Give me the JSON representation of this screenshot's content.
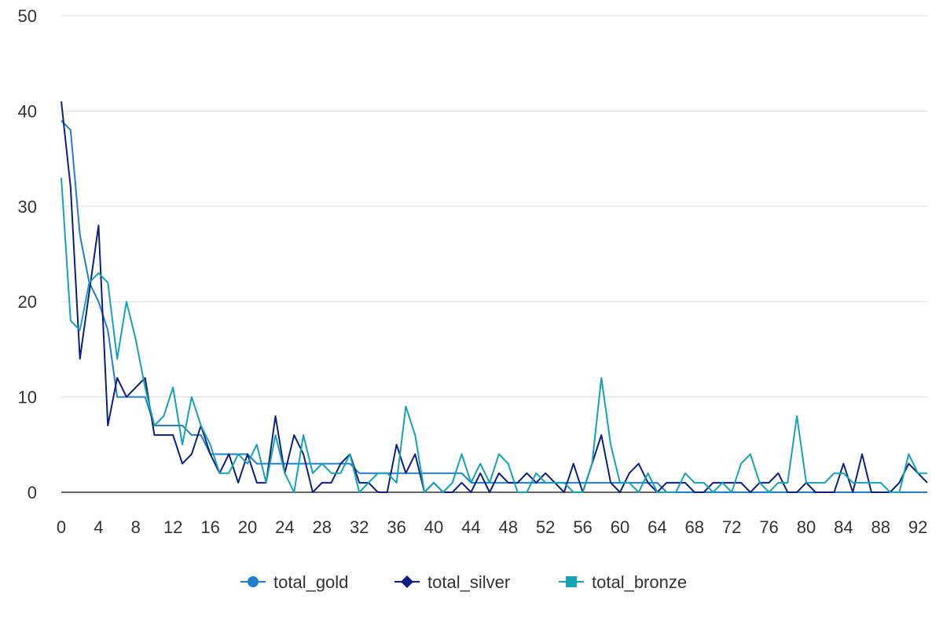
{
  "chart_data": {
    "type": "line",
    "title": "",
    "xlabel": "",
    "ylabel": "",
    "xlim": [
      0,
      93
    ],
    "ylim": [
      0,
      50
    ],
    "y_ticks": [
      0,
      10,
      20,
      30,
      40,
      50
    ],
    "x_ticks": [
      0,
      4,
      8,
      12,
      16,
      20,
      24,
      28,
      32,
      36,
      40,
      44,
      48,
      52,
      56,
      60,
      64,
      68,
      72,
      76,
      80,
      84,
      88,
      92
    ],
    "grid": "horizontal",
    "legend_position": "bottom",
    "x": [
      0,
      1,
      2,
      3,
      4,
      5,
      6,
      7,
      8,
      9,
      10,
      11,
      12,
      13,
      14,
      15,
      16,
      17,
      18,
      19,
      20,
      21,
      22,
      23,
      24,
      25,
      26,
      27,
      28,
      29,
      30,
      31,
      32,
      33,
      34,
      35,
      36,
      37,
      38,
      39,
      40,
      41,
      42,
      43,
      44,
      45,
      46,
      47,
      48,
      49,
      50,
      51,
      52,
      53,
      54,
      55,
      56,
      57,
      58,
      59,
      60,
      61,
      62,
      63,
      64,
      65,
      66,
      67,
      68,
      69,
      70,
      71,
      72,
      73,
      74,
      75,
      76,
      77,
      78,
      79,
      80,
      81,
      82,
      83,
      84,
      85,
      86,
      87,
      88,
      89,
      90,
      91,
      92,
      93
    ],
    "series": [
      {
        "name": "total_gold",
        "color": "#1f7fce",
        "marker": "circle",
        "values": [
          39,
          38,
          27,
          22,
          20,
          17,
          10,
          10,
          10,
          10,
          7,
          7,
          7,
          7,
          6,
          6,
          4,
          4,
          4,
          4,
          4,
          3,
          3,
          3,
          3,
          3,
          3,
          3,
          3,
          3,
          3,
          3,
          2,
          2,
          2,
          2,
          2,
          2,
          2,
          2,
          2,
          2,
          2,
          2,
          1,
          1,
          1,
          1,
          1,
          1,
          1,
          1,
          1,
          1,
          1,
          1,
          1,
          1,
          1,
          1,
          1,
          1,
          1,
          1,
          1,
          0,
          0,
          0,
          0,
          0,
          0,
          0,
          0,
          0,
          0,
          0,
          0,
          0,
          0,
          0,
          0,
          0,
          0,
          0,
          0,
          0,
          0,
          0,
          0,
          0,
          0,
          0,
          0,
          0
        ]
      },
      {
        "name": "total_silver",
        "color": "#0d1f80",
        "marker": "diamond",
        "values": [
          41,
          32,
          14,
          21,
          28,
          7,
          12,
          10,
          11,
          12,
          6,
          6,
          6,
          3,
          4,
          7,
          4,
          2,
          4,
          1,
          4,
          1,
          1,
          8,
          2,
          6,
          4,
          0,
          1,
          1,
          3,
          4,
          1,
          1,
          0,
          0,
          5,
          2,
          4,
          0,
          1,
          0,
          0,
          1,
          0,
          2,
          0,
          2,
          1,
          1,
          2,
          1,
          2,
          1,
          0,
          3,
          0,
          3,
          6,
          1,
          0,
          2,
          3,
          1,
          0,
          1,
          1,
          1,
          0,
          0,
          1,
          1,
          1,
          1,
          0,
          1,
          1,
          2,
          0,
          0,
          1,
          0,
          0,
          0,
          3,
          0,
          4,
          0,
          0,
          0,
          1,
          3,
          2,
          1
        ]
      },
      {
        "name": "total_bronze",
        "color": "#13a3b1",
        "marker": "square",
        "values": [
          33,
          18,
          17,
          22,
          23,
          22,
          14,
          20,
          16,
          11,
          7,
          8,
          11,
          5,
          10,
          7,
          5,
          2,
          2,
          4,
          3,
          5,
          1,
          6,
          2,
          0,
          6,
          2,
          3,
          2,
          2,
          4,
          0,
          1,
          2,
          2,
          1,
          9,
          6,
          0,
          1,
          0,
          1,
          4,
          1,
          3,
          1,
          4,
          3,
          0,
          0,
          2,
          1,
          1,
          1,
          0,
          0,
          3,
          12,
          5,
          1,
          1,
          0,
          2,
          0,
          0,
          0,
          2,
          1,
          1,
          0,
          1,
          0,
          3,
          4,
          1,
          0,
          1,
          1,
          8,
          1,
          1,
          1,
          2,
          2,
          1,
          1,
          1,
          1,
          0,
          0,
          4,
          2,
          2
        ]
      }
    ]
  }
}
